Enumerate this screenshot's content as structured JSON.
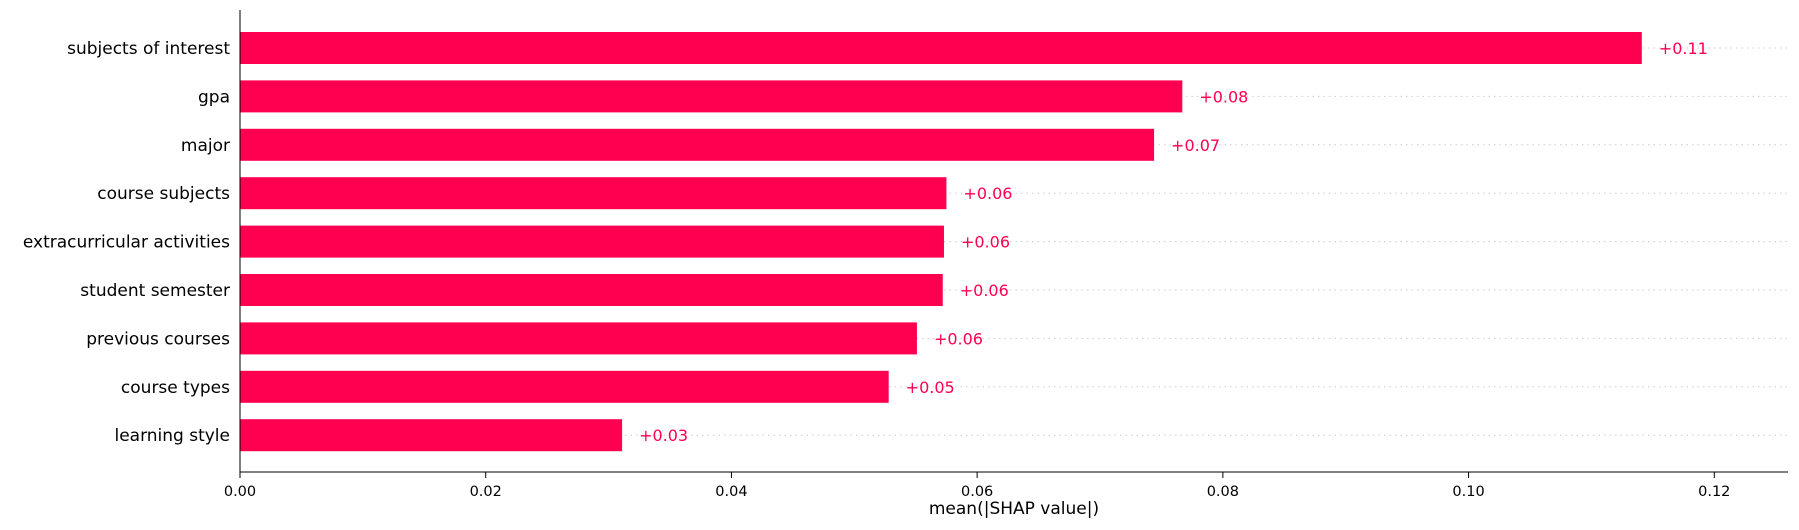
{
  "chart_data": {
    "type": "bar",
    "orientation": "horizontal",
    "categories": [
      "subjects of interest",
      "gpa",
      "major",
      "course subjects",
      "extracurricular activities",
      "student semester",
      "previous courses",
      "course types",
      "learning style"
    ],
    "values": [
      0.1141,
      0.0767,
      0.0744,
      0.0575,
      0.0573,
      0.0572,
      0.0551,
      0.0528,
      0.0311
    ],
    "value_labels": [
      "+0.11",
      "+0.08",
      "+0.07",
      "+0.06",
      "+0.06",
      "+0.06",
      "+0.06",
      "+0.05",
      "+0.03"
    ],
    "xlabel": "mean(|SHAP value|)",
    "xlim": [
      0,
      0.126
    ],
    "xticks": [
      0.0,
      0.02,
      0.04,
      0.06,
      0.08,
      0.1,
      0.12
    ],
    "xtick_labels": [
      "0.00",
      "0.02",
      "0.04",
      "0.06",
      "0.08",
      "0.10",
      "0.12"
    ],
    "grid": "dotted horizontal guide lines per bar",
    "colors": {
      "bar": "#ff0051",
      "label": "#ff0051",
      "axis": "#000000",
      "guide": "#cccccc"
    }
  }
}
